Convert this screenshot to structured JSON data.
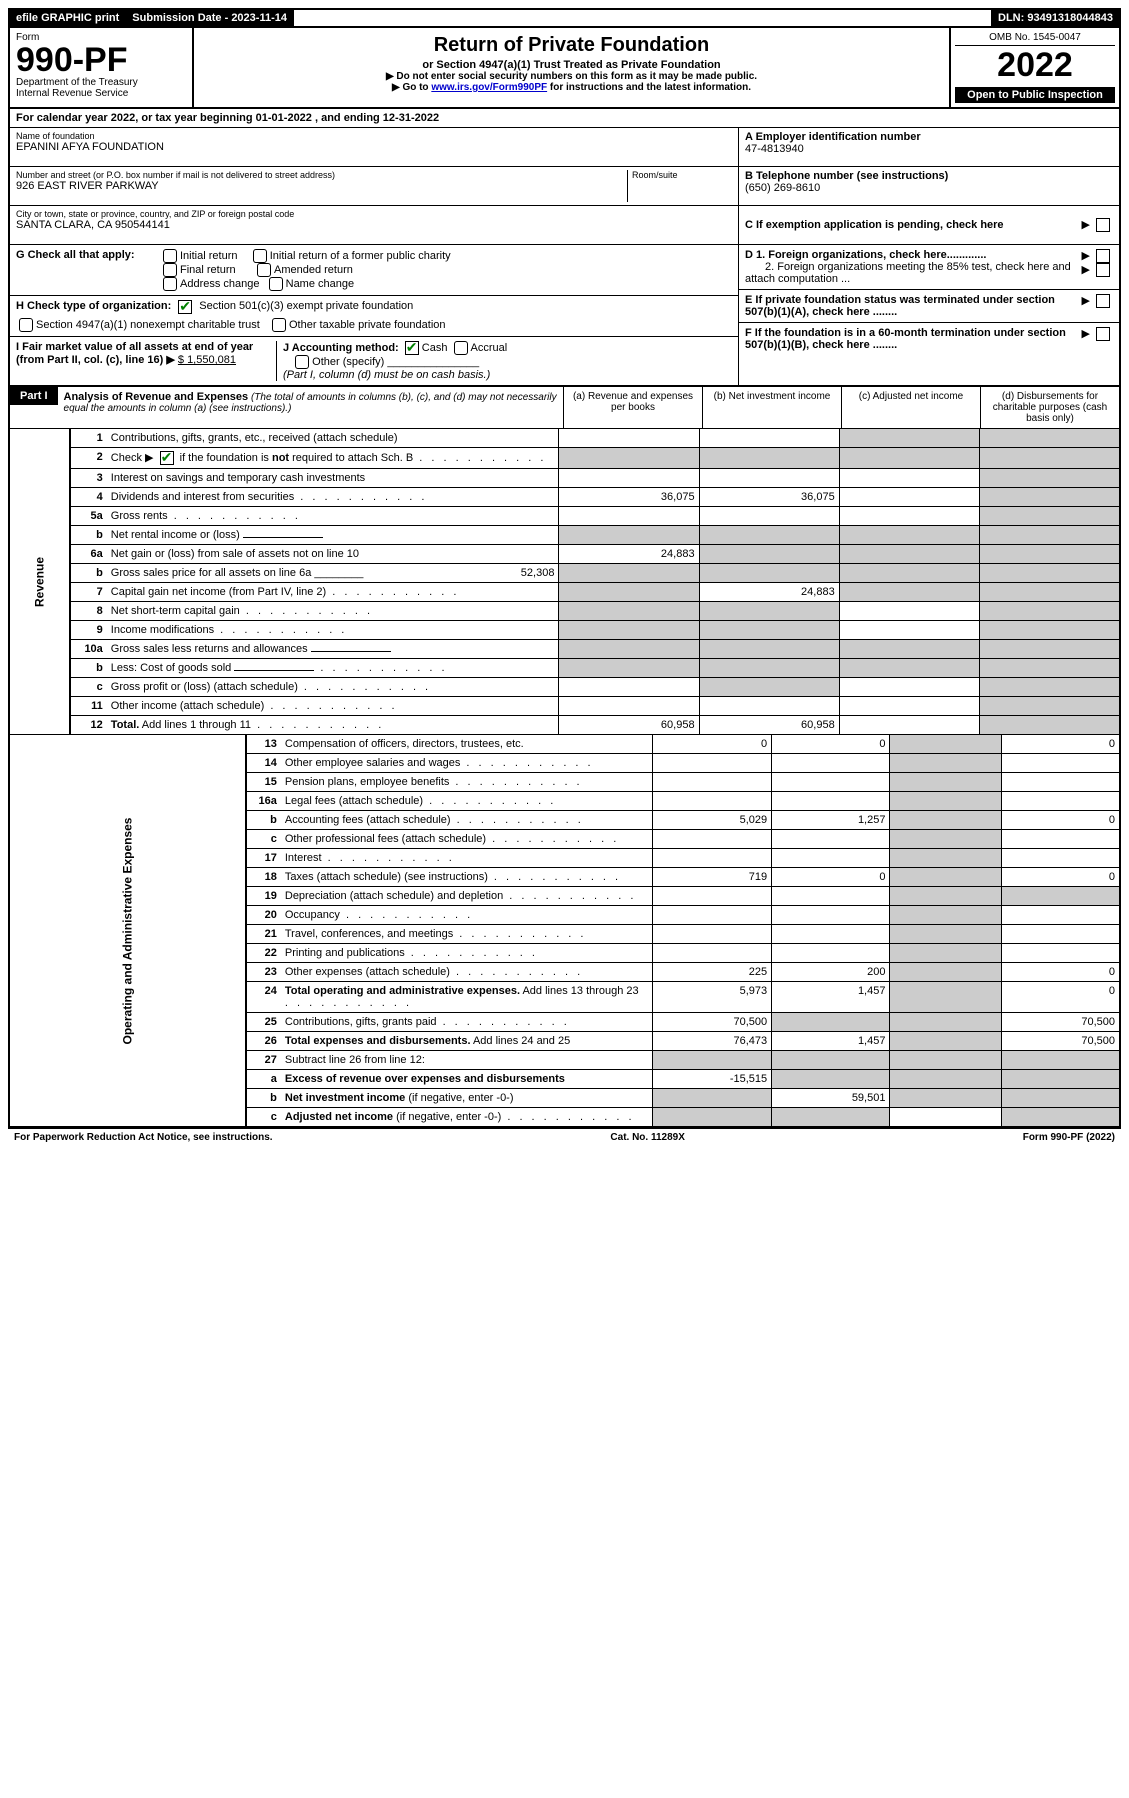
{
  "topbar": {
    "efile": "efile GRAPHIC print",
    "subdate_label": "Submission Date - 2023-11-14",
    "dln": "DLN: 93491318044843"
  },
  "header": {
    "form_label": "Form",
    "form_num": "990-PF",
    "dept": "Department of the Treasury",
    "irs": "Internal Revenue Service",
    "title": "Return of Private Foundation",
    "subtitle": "or Section 4947(a)(1) Trust Treated as Private Foundation",
    "note1": "▶ Do not enter social security numbers on this form as it may be made public.",
    "note2_pre": "▶ Go to ",
    "note2_link": "www.irs.gov/Form990PF",
    "note2_post": " for instructions and the latest information.",
    "omb": "OMB No. 1545-0047",
    "year": "2022",
    "open": "Open to Public Inspection"
  },
  "calyear": "For calendar year 2022, or tax year beginning 01-01-2022          , and ending 12-31-2022",
  "foundation": {
    "name_label": "Name of foundation",
    "name": "EPANINI AFYA FOUNDATION",
    "addr_label": "Number and street (or P.O. box number if mail is not delivered to street address)",
    "addr": "926 EAST RIVER PARKWAY",
    "room_label": "Room/suite",
    "city_label": "City or town, state or province, country, and ZIP or foreign postal code",
    "city": "SANTA CLARA, CA 950544141",
    "ein_label": "A Employer identification number",
    "ein": "47-4813940",
    "tel_label": "B Telephone number (see instructions)",
    "tel": "(650) 269-8610",
    "c_label": "C If exemption application is pending, check here"
  },
  "checks": {
    "g_label": "G Check all that apply:",
    "g_opts": [
      "Initial return",
      "Initial return of a former public charity",
      "Final return",
      "Amended return",
      "Address change",
      "Name change"
    ],
    "h_label": "H Check type of organization:",
    "h_opt1": "Section 501(c)(3) exempt private foundation",
    "h_opt2": "Section 4947(a)(1) nonexempt charitable trust",
    "h_opt3": "Other taxable private foundation",
    "i_label": "I Fair market value of all assets at end of year (from Part II, col. (c), line 16) ▶",
    "i_val": "$ 1,550,081",
    "j_label": "J Accounting method:",
    "j_cash": "Cash",
    "j_accrual": "Accrual",
    "j_other": "Other (specify)",
    "j_note": "(Part I, column (d) must be on cash basis.)",
    "d1": "D 1. Foreign organizations, check here.............",
    "d2": "2. Foreign organizations meeting the 85% test, check here and attach computation ...",
    "e": "E If private foundation status was terminated under section 507(b)(1)(A), check here ........",
    "f": "F If the foundation is in a 60-month termination under section 507(b)(1)(B), check here ........"
  },
  "part1": {
    "label": "Part I",
    "title": "Analysis of Revenue and Expenses",
    "note": " (The total of amounts in columns (b), (c), and (d) may not necessarily equal the amounts in column (a) (see instructions).)",
    "col_a": "(a) Revenue and expenses per books",
    "col_b": "(b) Net investment income",
    "col_c": "(c) Adjusted net income",
    "col_d": "(d) Disbursements for charitable purposes (cash basis only)"
  },
  "sections": {
    "revenue": "Revenue",
    "expenses": "Operating and Administrative Expenses"
  },
  "rows": [
    {
      "n": "1",
      "d": "Contributions, gifts, grants, etc., received (attach schedule)",
      "a": "",
      "b": "",
      "c": "shaded",
      "dd": "shaded"
    },
    {
      "n": "2",
      "d_html": "Check ▶ [CB] if the foundation is <b>not</b> required to attach Sch. B",
      "a": "shaded",
      "b": "shaded",
      "c": "shaded",
      "dd": "shaded",
      "checked": true,
      "dots": true
    },
    {
      "n": "3",
      "d": "Interest on savings and temporary cash investments",
      "a": "",
      "b": "",
      "c": "",
      "dd": "shaded"
    },
    {
      "n": "4",
      "d": "Dividends and interest from securities",
      "a": "36,075",
      "b": "36,075",
      "c": "",
      "dd": "shaded",
      "dots": true
    },
    {
      "n": "5a",
      "d": "Gross rents",
      "a": "",
      "b": "",
      "c": "",
      "dd": "shaded",
      "dots": true
    },
    {
      "n": "b",
      "d": "Net rental income or (loss)",
      "a": "shaded",
      "b": "shaded",
      "c": "shaded",
      "dd": "shaded",
      "inline": true
    },
    {
      "n": "6a",
      "d": "Net gain or (loss) from sale of assets not on line 10",
      "a": "24,883",
      "b": "shaded",
      "c": "shaded",
      "dd": "shaded"
    },
    {
      "n": "b",
      "d_html": "Gross sales price for all assets on line 6a ________ <span style='float:right'>52,308</span>",
      "a": "shaded",
      "b": "shaded",
      "c": "shaded",
      "dd": "shaded"
    },
    {
      "n": "7",
      "d": "Capital gain net income (from Part IV, line 2)",
      "a": "shaded",
      "b": "24,883",
      "c": "shaded",
      "dd": "shaded",
      "dots": true
    },
    {
      "n": "8",
      "d": "Net short-term capital gain",
      "a": "shaded",
      "b": "shaded",
      "c": "",
      "dd": "shaded",
      "dots": true
    },
    {
      "n": "9",
      "d": "Income modifications",
      "a": "shaded",
      "b": "shaded",
      "c": "",
      "dd": "shaded",
      "dots": true
    },
    {
      "n": "10a",
      "d": "Gross sales less returns and allowances",
      "a": "shaded",
      "b": "shaded",
      "c": "shaded",
      "dd": "shaded",
      "inline": true
    },
    {
      "n": "b",
      "d": "Less: Cost of goods sold",
      "a": "shaded",
      "b": "shaded",
      "c": "shaded",
      "dd": "shaded",
      "inline": true,
      "dots": true
    },
    {
      "n": "c",
      "d": "Gross profit or (loss) (attach schedule)",
      "a": "",
      "b": "shaded",
      "c": "",
      "dd": "shaded",
      "dots": true
    },
    {
      "n": "11",
      "d": "Other income (attach schedule)",
      "a": "",
      "b": "",
      "c": "",
      "dd": "shaded",
      "dots": true
    },
    {
      "n": "12",
      "d_html": "<b>Total.</b> Add lines 1 through 11",
      "a": "60,958",
      "b": "60,958",
      "c": "",
      "dd": "shaded",
      "dots": true
    }
  ],
  "exp_rows": [
    {
      "n": "13",
      "d": "Compensation of officers, directors, trustees, etc.",
      "a": "0",
      "b": "0",
      "c": "shaded",
      "dd": "0"
    },
    {
      "n": "14",
      "d": "Other employee salaries and wages",
      "a": "",
      "b": "",
      "c": "shaded",
      "dd": "",
      "dots": true
    },
    {
      "n": "15",
      "d": "Pension plans, employee benefits",
      "a": "",
      "b": "",
      "c": "shaded",
      "dd": "",
      "dots": true
    },
    {
      "n": "16a",
      "d": "Legal fees (attach schedule)",
      "a": "",
      "b": "",
      "c": "shaded",
      "dd": "",
      "dots": true
    },
    {
      "n": "b",
      "d": "Accounting fees (attach schedule)",
      "a": "5,029",
      "b": "1,257",
      "c": "shaded",
      "dd": "0",
      "dots": true
    },
    {
      "n": "c",
      "d": "Other professional fees (attach schedule)",
      "a": "",
      "b": "",
      "c": "shaded",
      "dd": "",
      "dots": true
    },
    {
      "n": "17",
      "d": "Interest",
      "a": "",
      "b": "",
      "c": "shaded",
      "dd": "",
      "dots": true
    },
    {
      "n": "18",
      "d": "Taxes (attach schedule) (see instructions)",
      "a": "719",
      "b": "0",
      "c": "shaded",
      "dd": "0",
      "dots": true
    },
    {
      "n": "19",
      "d": "Depreciation (attach schedule) and depletion",
      "a": "",
      "b": "",
      "c": "shaded",
      "dd": "shaded",
      "dots": true
    },
    {
      "n": "20",
      "d": "Occupancy",
      "a": "",
      "b": "",
      "c": "shaded",
      "dd": "",
      "dots": true
    },
    {
      "n": "21",
      "d": "Travel, conferences, and meetings",
      "a": "",
      "b": "",
      "c": "shaded",
      "dd": "",
      "dots": true
    },
    {
      "n": "22",
      "d": "Printing and publications",
      "a": "",
      "b": "",
      "c": "shaded",
      "dd": "",
      "dots": true
    },
    {
      "n": "23",
      "d": "Other expenses (attach schedule)",
      "a": "225",
      "b": "200",
      "c": "shaded",
      "dd": "0",
      "dots": true
    },
    {
      "n": "24",
      "d_html": "<b>Total operating and administrative expenses.</b> Add lines 13 through 23",
      "a": "5,973",
      "b": "1,457",
      "c": "shaded",
      "dd": "0",
      "dots": true
    },
    {
      "n": "25",
      "d": "Contributions, gifts, grants paid",
      "a": "70,500",
      "b": "shaded",
      "c": "shaded",
      "dd": "70,500",
      "dots": true
    },
    {
      "n": "26",
      "d_html": "<b>Total expenses and disbursements.</b> Add lines 24 and 25",
      "a": "76,473",
      "b": "1,457",
      "c": "shaded",
      "dd": "70,500"
    },
    {
      "n": "27",
      "d": "Subtract line 26 from line 12:",
      "a": "shaded",
      "b": "shaded",
      "c": "shaded",
      "dd": "shaded"
    },
    {
      "n": "a",
      "d_html": "<b>Excess of revenue over expenses and disbursements</b>",
      "a": "-15,515",
      "b": "shaded",
      "c": "shaded",
      "dd": "shaded"
    },
    {
      "n": "b",
      "d_html": "<b>Net investment income</b> (if negative, enter -0-)",
      "a": "shaded",
      "b": "59,501",
      "c": "shaded",
      "dd": "shaded"
    },
    {
      "n": "c",
      "d_html": "<b>Adjusted net income</b> (if negative, enter -0-)",
      "a": "shaded",
      "b": "shaded",
      "c": "",
      "dd": "shaded",
      "dots": true
    }
  ],
  "footer": {
    "left": "For Paperwork Reduction Act Notice, see instructions.",
    "mid": "Cat. No. 11289X",
    "right": "Form 990-PF (2022)"
  }
}
